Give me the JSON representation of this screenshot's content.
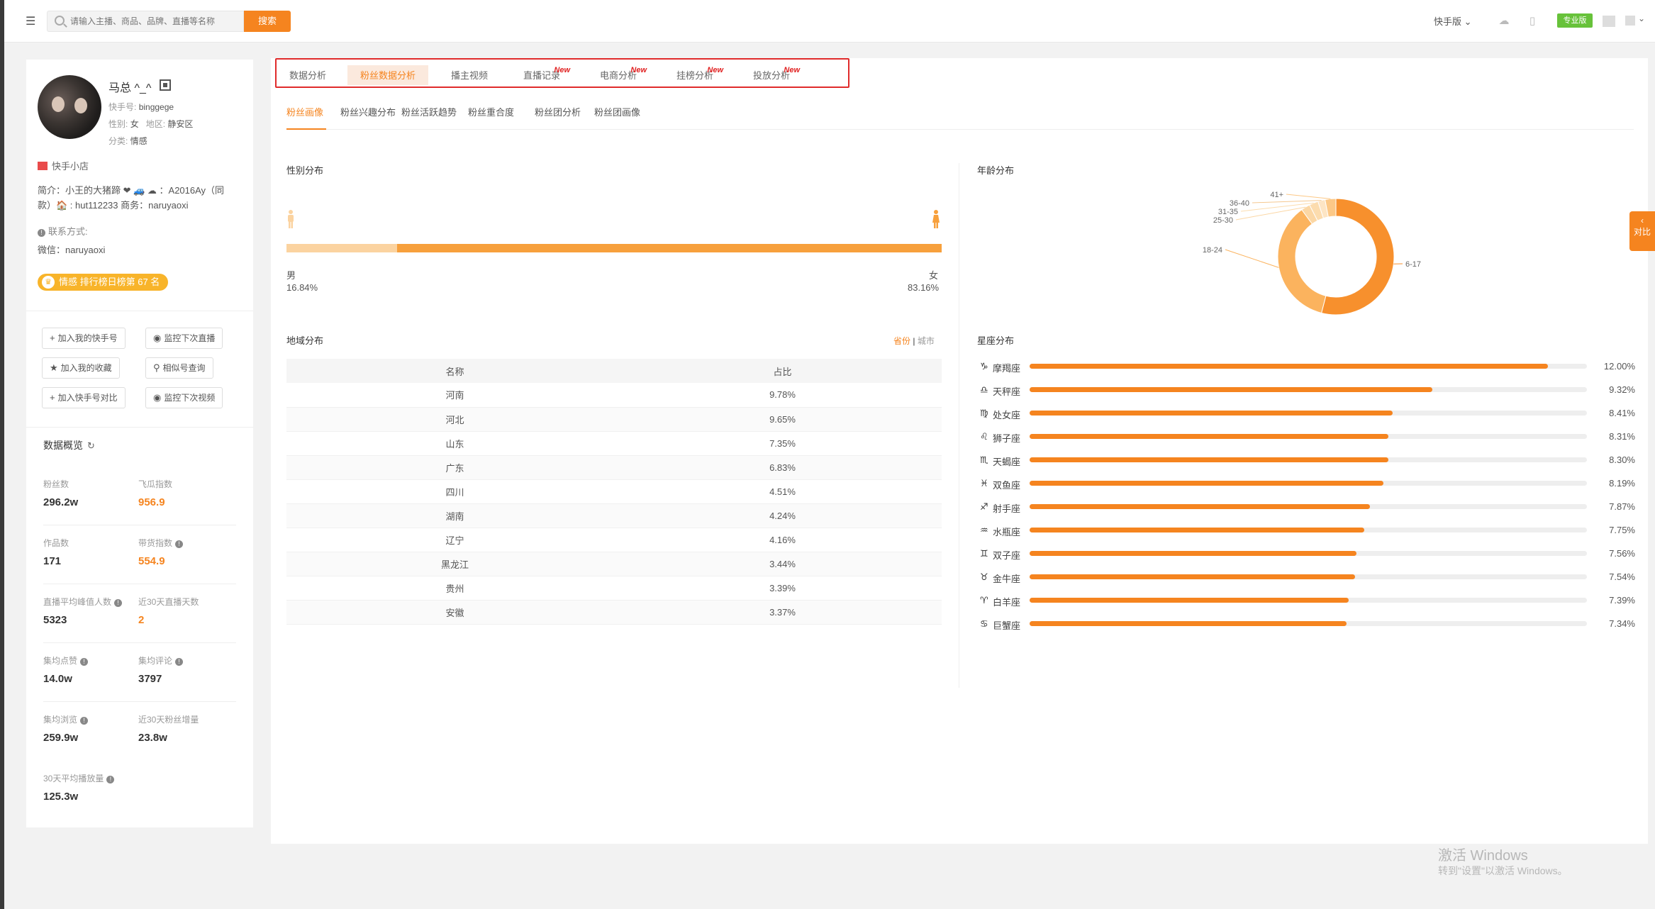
{
  "topbar": {
    "search_placeholder": "请输入主播、商品、品牌、直播等名称",
    "search_button": "搜索",
    "version_select": "快手版",
    "pro_badge": "专业版"
  },
  "profile": {
    "name": "马总 ^_^",
    "kuaishou_id_label": "快手号:",
    "kuaishou_id": "binggege",
    "gender_label": "性别:",
    "gender": "女",
    "region_label": "地区:",
    "region": "静安区",
    "category_label": "分类:",
    "category": "情感",
    "shop": "快手小店",
    "intro_line1": "简介：小王的大猪蹄 ❤ 🚙 ☁ ：A2016Ay（同",
    "intro_line2": "款）🏠 : hut112233 商务：naruyaoxi",
    "contact_label": "联系方式:",
    "wechat": "微信：naruyaoxi",
    "rank_badge": "情感 排行榜日榜第 67 名",
    "buttons": {
      "add_my": "加入我的快手号",
      "monitor_live": "监控下次直播",
      "add_fav": "加入我的收藏",
      "similar": "相似号查询",
      "add_compare": "加入快手号对比",
      "monitor_video": "监控下次视频"
    },
    "overview_title": "数据概览",
    "stats": [
      {
        "label": "粉丝数",
        "value": "296.2w",
        "orange": false
      },
      {
        "label": "飞瓜指数",
        "value": "956.9",
        "orange": true
      },
      {
        "label": "作品数",
        "value": "171",
        "orange": false
      },
      {
        "label": "带货指数",
        "value": "554.9",
        "orange": true
      },
      {
        "label": "直播平均峰值人数",
        "value": "5323",
        "orange": false
      },
      {
        "label": "近30天直播天数",
        "value": "2",
        "orange": true
      },
      {
        "label": "集均点赞",
        "value": "14.0w",
        "orange": false
      },
      {
        "label": "集均评论",
        "value": "3797",
        "orange": false
      },
      {
        "label": "集均浏览",
        "value": "259.9w",
        "orange": false
      },
      {
        "label": "近30天粉丝增量",
        "value": "23.8w",
        "orange": false
      },
      {
        "label": "30天平均播放量",
        "value": "125.3w",
        "orange": false
      }
    ]
  },
  "tabs": [
    {
      "label": "数据分析",
      "new": ""
    },
    {
      "label": "粉丝数据分析",
      "new": ""
    },
    {
      "label": "播主视频",
      "new": ""
    },
    {
      "label": "直播记录",
      "new": "New"
    },
    {
      "label": "电商分析",
      "new": "New"
    },
    {
      "label": "挂榜分析",
      "new": "New"
    },
    {
      "label": "投放分析",
      "new": "New"
    }
  ],
  "subtabs": [
    "粉丝画像",
    "粉丝兴趣分布",
    "粉丝活跃趋势",
    "粉丝重合度",
    "粉丝团分析",
    "粉丝团画像"
  ],
  "gender": {
    "title": "性别分布",
    "male_label": "男",
    "male_pct": "16.84%",
    "female_label": "女",
    "female_pct": "83.16%",
    "male_value": 16.84
  },
  "region": {
    "title": "地域分布",
    "toggle_province": "省份",
    "toggle_sep": "|",
    "toggle_city": "城市",
    "columns": [
      "名称",
      "占比"
    ],
    "rows": [
      [
        "河南",
        "9.78%"
      ],
      [
        "河北",
        "9.65%"
      ],
      [
        "山东",
        "7.35%"
      ],
      [
        "广东",
        "6.83%"
      ],
      [
        "四川",
        "4.51%"
      ],
      [
        "湖南",
        "4.24%"
      ],
      [
        "辽宁",
        "4.16%"
      ],
      [
        "黑龙江",
        "3.44%"
      ],
      [
        "贵州",
        "3.39%"
      ],
      [
        "安徽",
        "3.37%"
      ]
    ]
  },
  "age": {
    "title": "年龄分布"
  },
  "zodiac": {
    "title": "星座分布",
    "items": [
      {
        "icon": "♑",
        "name": "摩羯座",
        "pct": "12.00%",
        "value": 12.0
      },
      {
        "icon": "♎",
        "name": "天秤座",
        "pct": "9.32%",
        "value": 9.32
      },
      {
        "icon": "♍",
        "name": "处女座",
        "pct": "8.41%",
        "value": 8.41
      },
      {
        "icon": "♌",
        "name": "狮子座",
        "pct": "8.31%",
        "value": 8.31
      },
      {
        "icon": "♏",
        "name": "天蝎座",
        "pct": "8.30%",
        "value": 8.3
      },
      {
        "icon": "♓",
        "name": "双鱼座",
        "pct": "8.19%",
        "value": 8.19
      },
      {
        "icon": "♐",
        "name": "射手座",
        "pct": "7.87%",
        "value": 7.87
      },
      {
        "icon": "♒",
        "name": "水瓶座",
        "pct": "7.75%",
        "value": 7.75
      },
      {
        "icon": "♊",
        "name": "双子座",
        "pct": "7.56%",
        "value": 7.56
      },
      {
        "icon": "♉",
        "name": "金牛座",
        "pct": "7.54%",
        "value": 7.54
      },
      {
        "icon": "♈",
        "name": "白羊座",
        "pct": "7.39%",
        "value": 7.39
      },
      {
        "icon": "♋",
        "name": "巨蟹座",
        "pct": "7.34%",
        "value": 7.34
      }
    ]
  },
  "chart_data": {
    "type": "pie",
    "categories": [
      "6-17",
      "18-24",
      "25-30",
      "31-35",
      "36-40",
      "41+"
    ],
    "values": [
      54,
      36,
      2.5,
      2.5,
      2,
      3
    ]
  },
  "side_compare": "对比",
  "watermark": {
    "line1": "激活 Windows",
    "line2": "转到\"设置\"以激活 Windows。"
  },
  "colors": {
    "accent": "#f5841f",
    "accent_light": "#fbd3a0",
    "new_red": "#e02020",
    "tab_border": "#e02b2b",
    "pro_green": "#67c23a",
    "rank_yellow": "#f8b42a"
  }
}
